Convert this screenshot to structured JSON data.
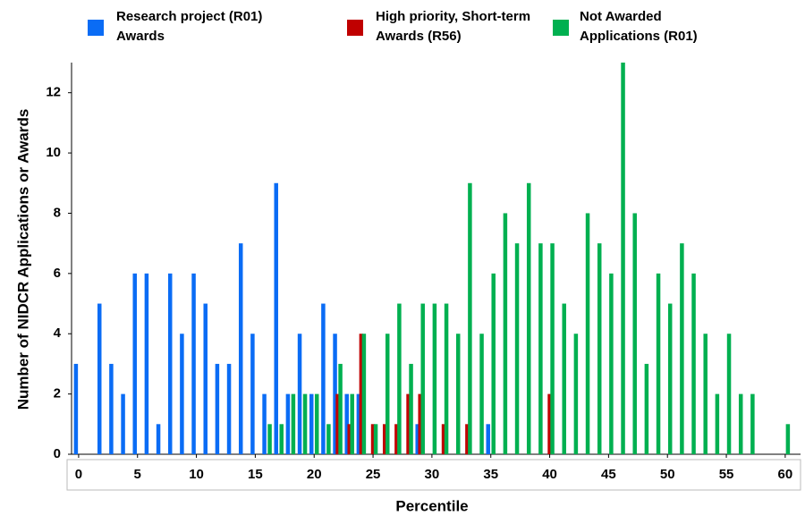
{
  "chart_data": {
    "type": "bar",
    "x_label": "Percentile",
    "y_label": "Number of NIDCR Applications or Awards",
    "x": [
      0,
      1,
      2,
      3,
      4,
      5,
      6,
      7,
      8,
      9,
      10,
      11,
      12,
      13,
      14,
      15,
      16,
      17,
      18,
      19,
      20,
      21,
      22,
      23,
      24,
      25,
      26,
      27,
      28,
      29,
      30,
      31,
      32,
      33,
      34,
      35,
      36,
      37,
      38,
      39,
      40,
      41,
      42,
      43,
      44,
      45,
      46,
      47,
      48,
      49,
      50,
      51,
      52,
      53,
      54,
      55,
      56,
      57,
      58,
      59,
      60
    ],
    "series": [
      {
        "name": "Research project (R01) Awards",
        "color": "#0a6cf5",
        "values": [
          3,
          null,
          5,
          3,
          2,
          6,
          6,
          1,
          6,
          4,
          6,
          5,
          3,
          3,
          7,
          4,
          2,
          9,
          2,
          4,
          2,
          5,
          4,
          2,
          2,
          null,
          null,
          null,
          null,
          1,
          null,
          null,
          null,
          null,
          null,
          1,
          null,
          null,
          null,
          null,
          null,
          null,
          null,
          null,
          null,
          null,
          null,
          null,
          null,
          null,
          null,
          null,
          null,
          null,
          null,
          null,
          null,
          null,
          null,
          null,
          null
        ]
      },
      {
        "name": "High priority, Short-term Awards (R56)",
        "color": "#c00000",
        "values": [
          null,
          null,
          null,
          null,
          null,
          null,
          null,
          null,
          null,
          null,
          null,
          null,
          null,
          null,
          null,
          null,
          null,
          null,
          null,
          null,
          null,
          null,
          2,
          1,
          4,
          1,
          1,
          1,
          2,
          2,
          null,
          1,
          null,
          1,
          null,
          null,
          null,
          null,
          null,
          null,
          2,
          null,
          null,
          null,
          null,
          null,
          null,
          null,
          null,
          null,
          null,
          null,
          null,
          null,
          null,
          null,
          null,
          null,
          null,
          null,
          null
        ]
      },
      {
        "name": "Not Awarded Applications (R01)",
        "color": "#00b050",
        "values": [
          null,
          null,
          null,
          null,
          null,
          null,
          null,
          null,
          null,
          null,
          null,
          null,
          null,
          null,
          null,
          null,
          1,
          1,
          2,
          2,
          2,
          1,
          3,
          2,
          4,
          1,
          4,
          5,
          3,
          5,
          5,
          5,
          4,
          9,
          4,
          6,
          8,
          7,
          9,
          7,
          7,
          5,
          4,
          8,
          7,
          6,
          13,
          8,
          3,
          6,
          5,
          7,
          6,
          4,
          2,
          4,
          2,
          2,
          null,
          null,
          1
        ]
      }
    ],
    "xlim": [
      -0.6,
      61.3
    ],
    "xticks": [
      0,
      5,
      10,
      15,
      20,
      25,
      30,
      35,
      40,
      45,
      50,
      55,
      60
    ],
    "ylim": [
      0,
      13
    ],
    "yticks": [
      0,
      2,
      4,
      6,
      8,
      10,
      12
    ]
  }
}
